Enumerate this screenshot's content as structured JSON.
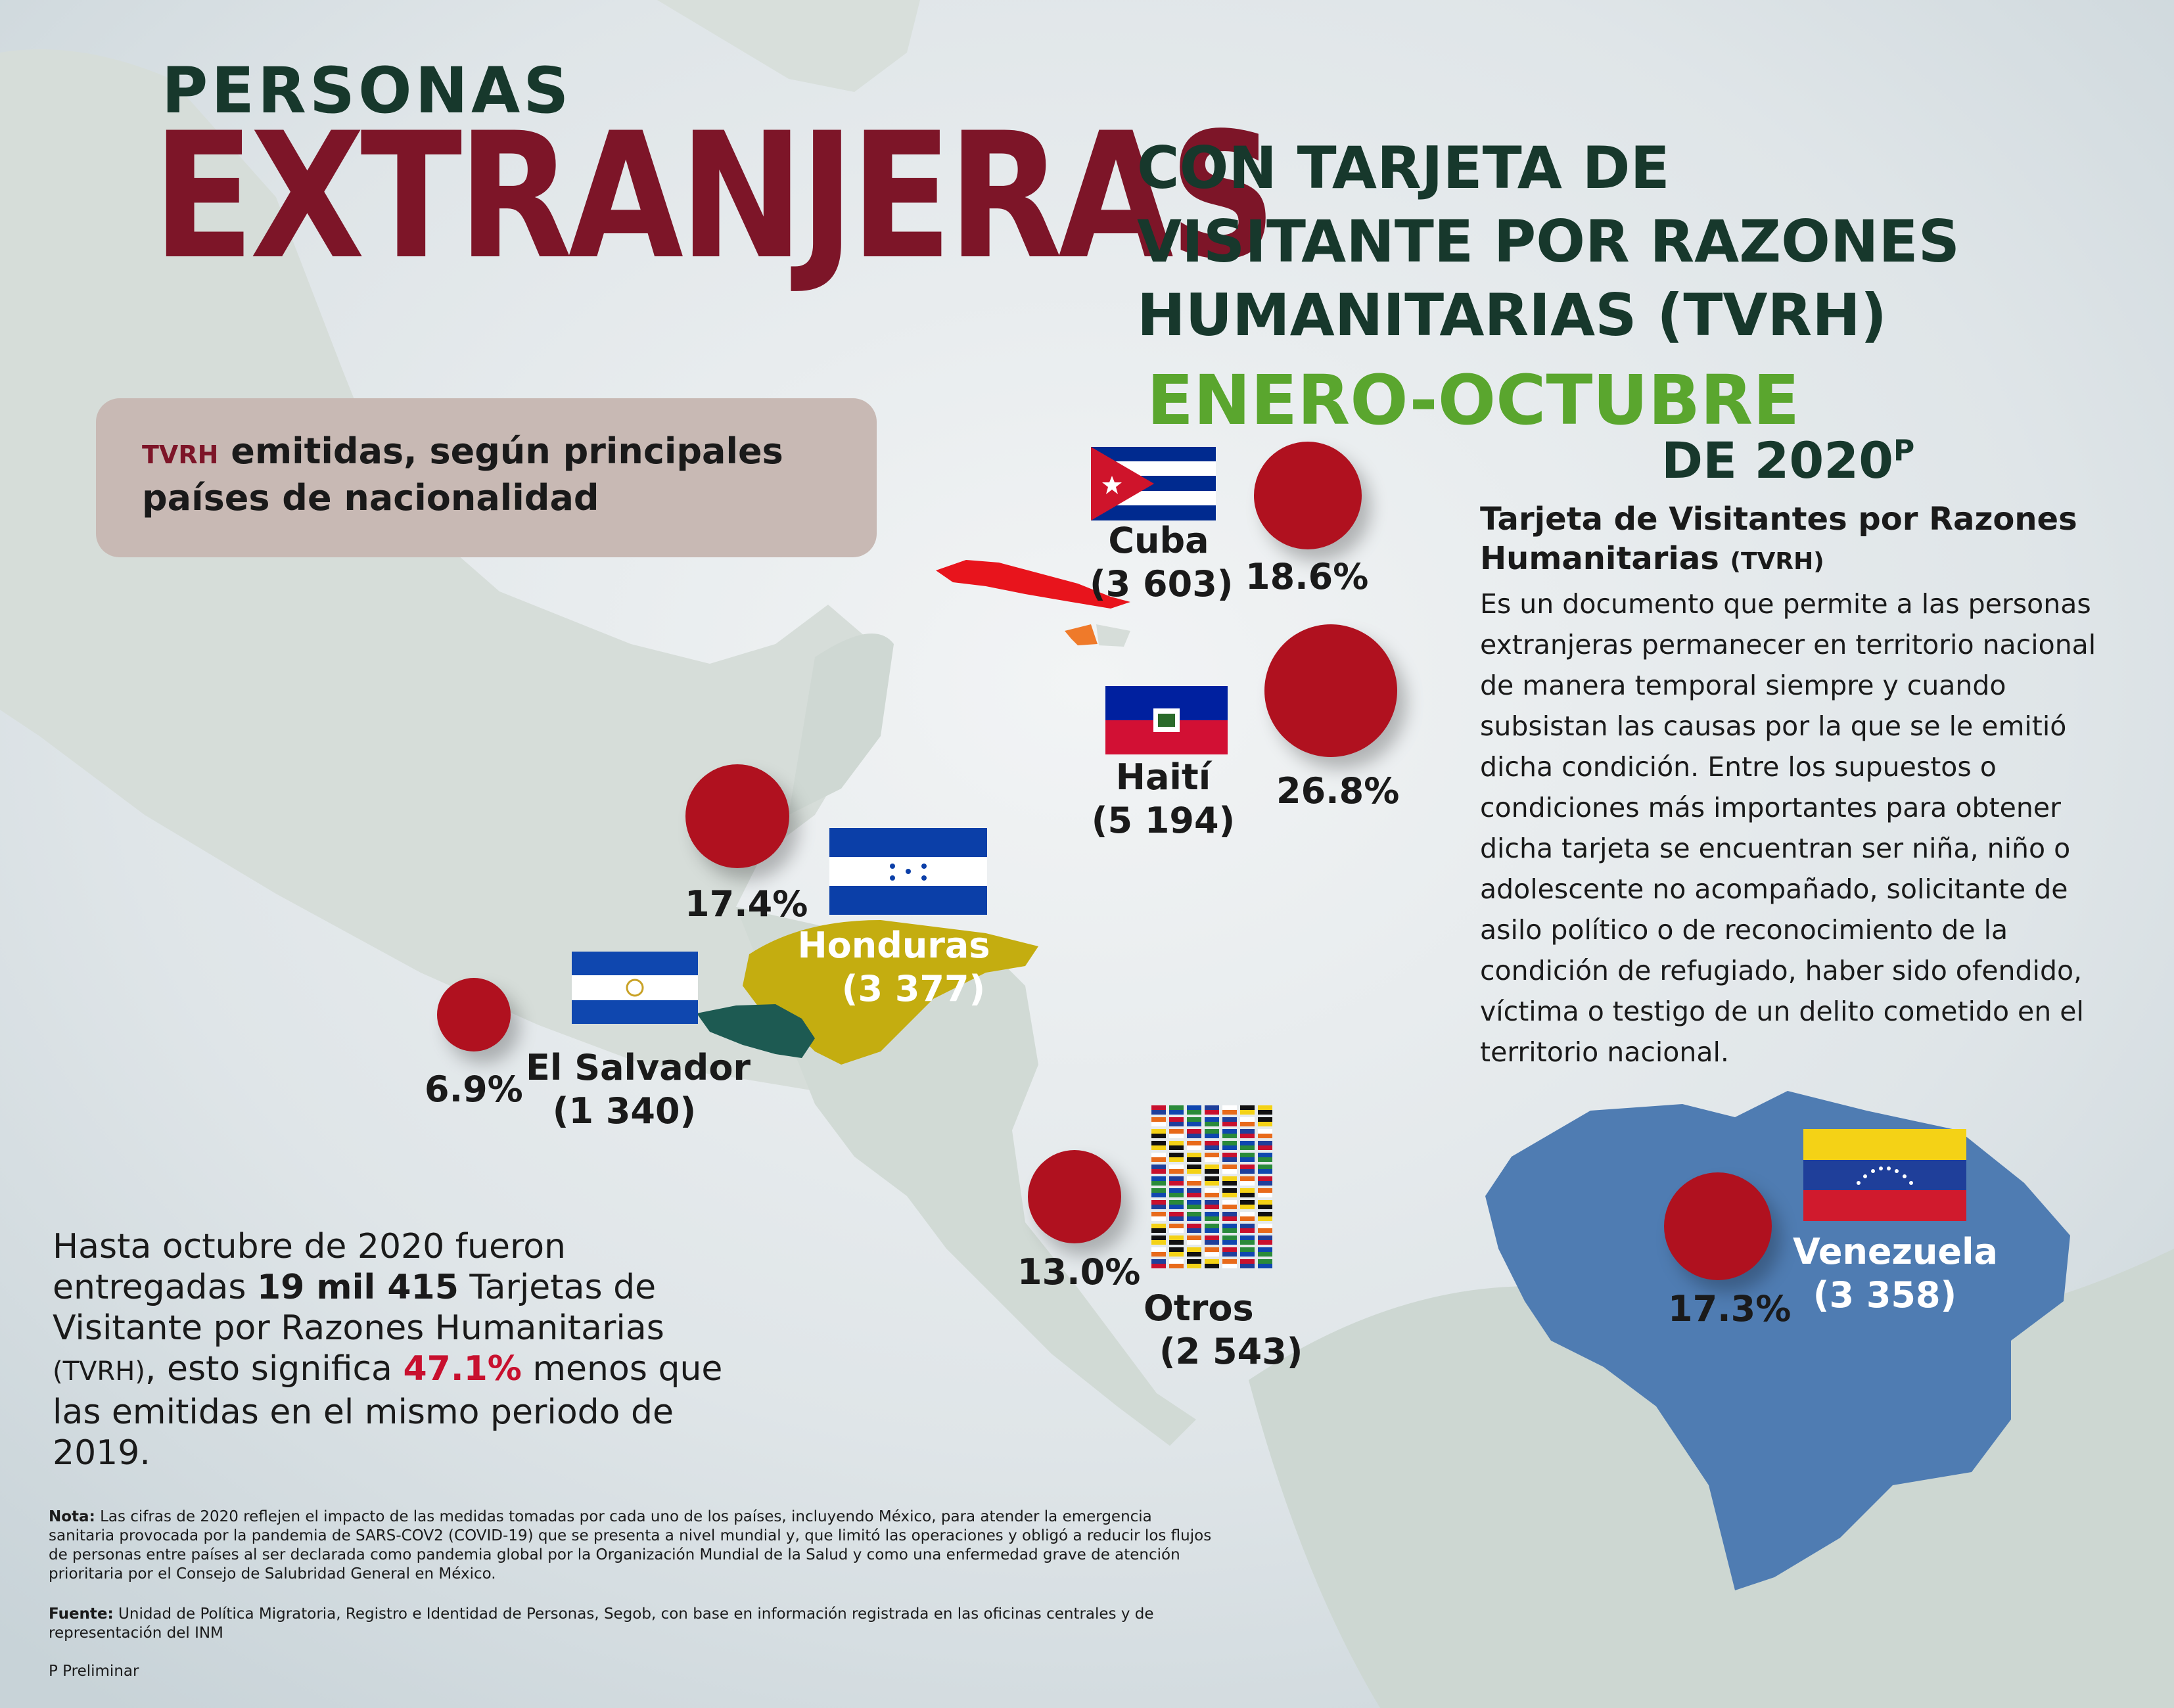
{
  "title": {
    "line1": "PERSONAS",
    "line2": "EXTRANJERAS",
    "line3": [
      "CON TARJETA DE",
      "VISITANTE POR RAZONES",
      "HUMANITARIAS (TVRH)"
    ],
    "period": "ENERO-OCTUBRE",
    "year": "DE 2020",
    "year_sup": "P"
  },
  "subtitle": {
    "acronym": "TVRH",
    "text": " emitidas, según principales países de nacionalidad"
  },
  "description": {
    "title": "Tarjeta de Visitantes por Razones Humanitarias",
    "title_acronym": "(TVRH)",
    "body": "Es un documento que permite a las personas extranjeras permanecer en territorio nacional de manera temporal siempre y cuando subsistan las causas por la que se le emitió dicha condición. Entre los supuestos o condiciones más importantes para obtener dicha tarjeta se encuentran ser niña, niño o adolescente no acompañado, solicitante de asilo político o de reconocimiento de la condición de refugiado, haber sido ofendido, víctima o testigo de un delito cometido en el territorio nacional."
  },
  "countries": [
    {
      "name": "Cuba",
      "count": "(3 603)",
      "percent": "18.6%",
      "share": 18.6
    },
    {
      "name": "Haití",
      "count": "(5 194)",
      "percent": "26.8%",
      "share": 26.8
    },
    {
      "name": "Honduras",
      "count": "(3 377)",
      "percent": "17.4%",
      "share": 17.4
    },
    {
      "name": "El Salvador",
      "count": "(1 340)",
      "percent": "6.9%",
      "share": 6.9
    },
    {
      "name": "Otros",
      "count": "(2 543)",
      "percent": "13.0%",
      "share": 13.0
    },
    {
      "name": "Venezuela",
      "count": "(3 358)",
      "percent": "17.3%",
      "share": 17.3
    }
  ],
  "summary": {
    "p1": "Hasta octubre de 2020 fueron entregadas ",
    "total": "19 mil 415",
    "p2": "  Tarjetas de Visitante por Razones Humanitarias ",
    "acronym": "(TVRH)",
    "p3": ", esto significa ",
    "decline": "47.1%",
    "p4": " menos que las emitidas en el mismo periodo de 2019."
  },
  "note": {
    "label": "Nota:",
    "text": " Las cifras de 2020 reflejen el impacto de las medidas tomadas por cada uno de los países, incluyendo México, para atender la emergencia sanitaria provocada por la pandemia de SARS-COV2 (COVID-19) que se presenta a nivel mundial y, que limitó las operaciones y obligó a reducir los flujos de personas entre países al ser declarada como pandemia global por la Organización Mundial de la Salud y como una enfermedad grave de atención prioritaria por el Consejo de Salubridad General en México."
  },
  "source": {
    "label": "Fuente:",
    "text": " Unidad de Política Migratoria, Registro e Identidad de Personas, Segob, con base en información registrada en las oficinas centrales y de representación del INM"
  },
  "preliminary": "P Preliminar",
  "colors": {
    "title_dark": "#17382c",
    "title_red": "#7d1528",
    "period_green": "#5aa62e",
    "bubble": "#b0111f",
    "highlight": "#c8102e"
  }
}
